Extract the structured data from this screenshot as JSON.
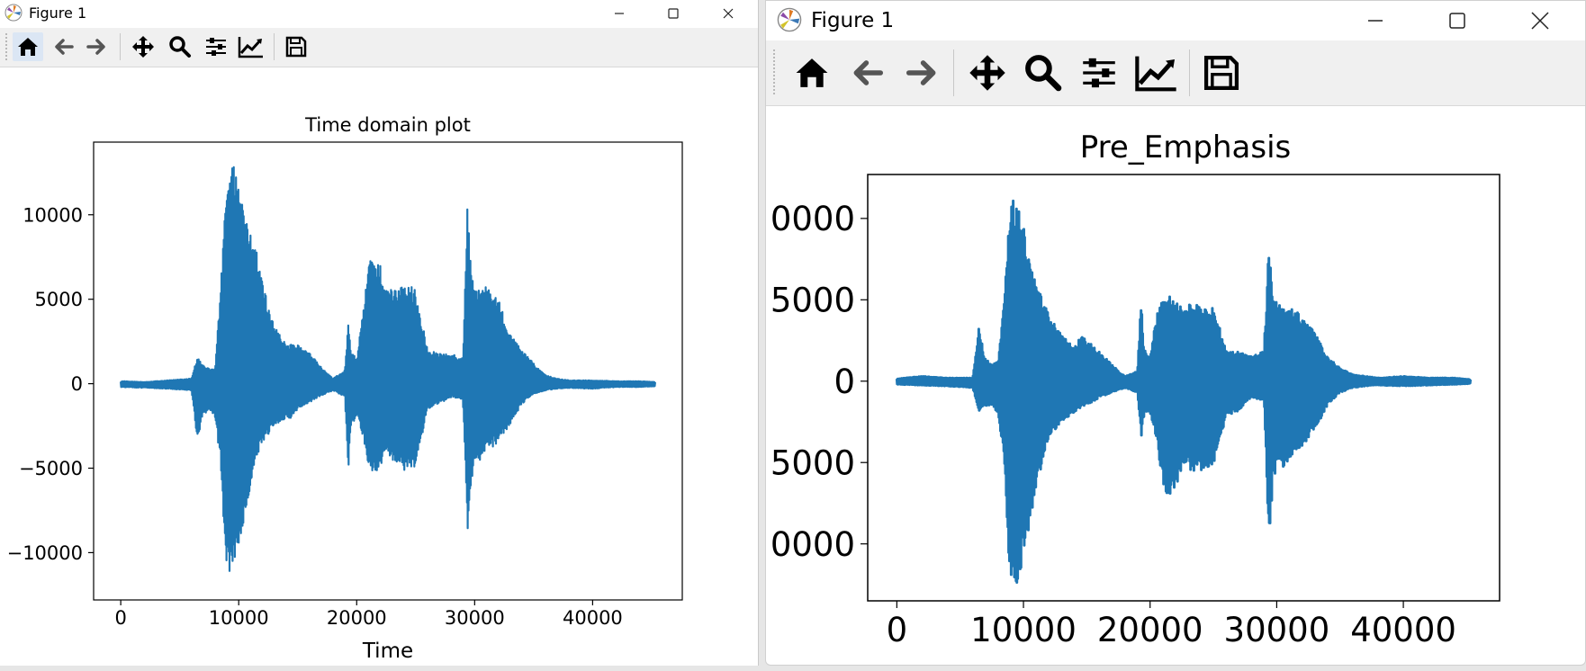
{
  "windows": [
    {
      "title": "Figure 1",
      "toolbar": [
        "home-icon",
        "back-arrow-icon",
        "forward-arrow-icon",
        "pan-icon",
        "zoom-icon",
        "configure-subplots-icon",
        "edit-axis-icon",
        "save-icon"
      ],
      "chart": {
        "title": "Time domain plot",
        "xlabel": "Time",
        "ylabel": "",
        "xticks": [
          "0",
          "10000",
          "20000",
          "30000",
          "40000"
        ],
        "yticks": [
          "−10000",
          "−5000",
          "0",
          "5000",
          "10000"
        ]
      }
    },
    {
      "title": "Figure 1",
      "toolbar": [
        "home-icon",
        "back-arrow-icon",
        "forward-arrow-icon",
        "pan-icon",
        "zoom-icon",
        "configure-subplots-icon",
        "edit-axis-icon",
        "save-icon"
      ],
      "chart": {
        "title": "Pre_Emphasis",
        "xlabel": "",
        "ylabel": "",
        "xticks": [
          "0",
          "10000",
          "20000",
          "30000",
          "40000"
        ],
        "yticks": [
          "0000",
          "5000",
          "0",
          "5000",
          "0000"
        ]
      }
    }
  ],
  "chart_data": [
    {
      "type": "line",
      "title": "Time domain plot",
      "xlabel": "Time",
      "ylabel": "",
      "xlim": [
        -2300,
        47600
      ],
      "ylim": [
        -12800,
        14300
      ],
      "color": "#1f77b4",
      "envelope_x": [
        0,
        2000,
        4000,
        6000,
        6500,
        6900,
        7500,
        8000,
        8500,
        8800,
        9100,
        9500,
        10000,
        10500,
        11000,
        11500,
        12000,
        13000,
        14000,
        14500,
        15000,
        16000,
        17000,
        18000,
        19000,
        19300,
        19500,
        20000,
        20500,
        21000,
        21500,
        22000,
        22500,
        23000,
        24000,
        25000,
        26000,
        27000,
        28000,
        29000,
        29400,
        29700,
        30000,
        30500,
        31000,
        32000,
        33000,
        34000,
        35000,
        36000,
        37000,
        38000,
        40000,
        42000,
        44000,
        45300
      ],
      "envelope_max": [
        150,
        100,
        200,
        300,
        1600,
        1100,
        900,
        900,
        6000,
        10500,
        12900,
        13000,
        12000,
        10000,
        9000,
        8000,
        6000,
        3500,
        2300,
        2400,
        2300,
        1800,
        1000,
        300,
        800,
        3700,
        2000,
        1500,
        4000,
        7300,
        7400,
        7000,
        5500,
        5600,
        5800,
        5700,
        2000,
        1800,
        1800,
        1500,
        10800,
        6500,
        6000,
        5600,
        5800,
        5000,
        3000,
        2000,
        1200,
        500,
        300,
        200,
        200,
        150,
        150,
        100
      ],
      "envelope_min": [
        -200,
        -250,
        -300,
        -400,
        -3500,
        -2000,
        -1600,
        -2000,
        -5000,
        -10000,
        -11500,
        -11000,
        -9500,
        -8000,
        -6000,
        -4500,
        -3500,
        -2500,
        -2100,
        -2000,
        -1500,
        -1100,
        -700,
        -400,
        -800,
        -5100,
        -2500,
        -2000,
        -3000,
        -5000,
        -5300,
        -5000,
        -4000,
        -4500,
        -5200,
        -4900,
        -1500,
        -1200,
        -800,
        -1000,
        -8800,
        -6000,
        -4500,
        -4500,
        -4000,
        -3500,
        -2500,
        -1200,
        -600,
        -400,
        -300,
        -250,
        -300,
        -200,
        -200,
        -150
      ]
    },
    {
      "type": "line",
      "title": "Pre_Emphasis",
      "xlabel": "",
      "ylabel": "",
      "xlim": [
        -2300,
        47600
      ],
      "ylim": [
        -13500,
        12700
      ],
      "color": "#1f77b4",
      "envelope_x": [
        0,
        2000,
        4000,
        6000,
        6500,
        6900,
        7500,
        8000,
        8500,
        8800,
        9100,
        9500,
        10000,
        10500,
        11000,
        11500,
        12000,
        13000,
        14000,
        14500,
        15000,
        16000,
        17000,
        18000,
        19000,
        19300,
        19500,
        20000,
        20500,
        21000,
        21500,
        22000,
        22500,
        23000,
        24000,
        25000,
        26000,
        27000,
        28000,
        29000,
        29400,
        29700,
        30000,
        30500,
        31000,
        32000,
        33000,
        34000,
        35000,
        36000,
        37000,
        38000,
        40000,
        42000,
        44000,
        45300
      ],
      "envelope_max": [
        150,
        300,
        200,
        200,
        3500,
        1500,
        1000,
        1200,
        5000,
        9500,
        11500,
        11000,
        9500,
        7500,
        6000,
        5200,
        4000,
        2900,
        2000,
        2800,
        2500,
        1800,
        1000,
        300,
        600,
        5000,
        2000,
        1500,
        4000,
        5200,
        5300,
        5000,
        4500,
        4700,
        4700,
        4500,
        2000,
        1800,
        1500,
        2000,
        8700,
        5500,
        5000,
        4600,
        4600,
        4000,
        3000,
        1500,
        800,
        400,
        300,
        200,
        300,
        200,
        200,
        100
      ],
      "envelope_min": [
        -200,
        -250,
        -300,
        -400,
        -2000,
        -1500,
        -1500,
        -2000,
        -5000,
        -11000,
        -12500,
        -12500,
        -11000,
        -9000,
        -6500,
        -5000,
        -3500,
        -2500,
        -1900,
        -1700,
        -1500,
        -1000,
        -700,
        -400,
        -700,
        -3500,
        -2200,
        -1900,
        -3500,
        -6500,
        -7200,
        -6500,
        -5500,
        -5500,
        -5500,
        -5300,
        -2200,
        -1800,
        -1000,
        -1200,
        -10300,
        -6000,
        -5500,
        -5500,
        -4800,
        -4000,
        -3000,
        -1500,
        -700,
        -400,
        -300,
        -250,
        -300,
        -250,
        -200,
        -150
      ]
    }
  ]
}
